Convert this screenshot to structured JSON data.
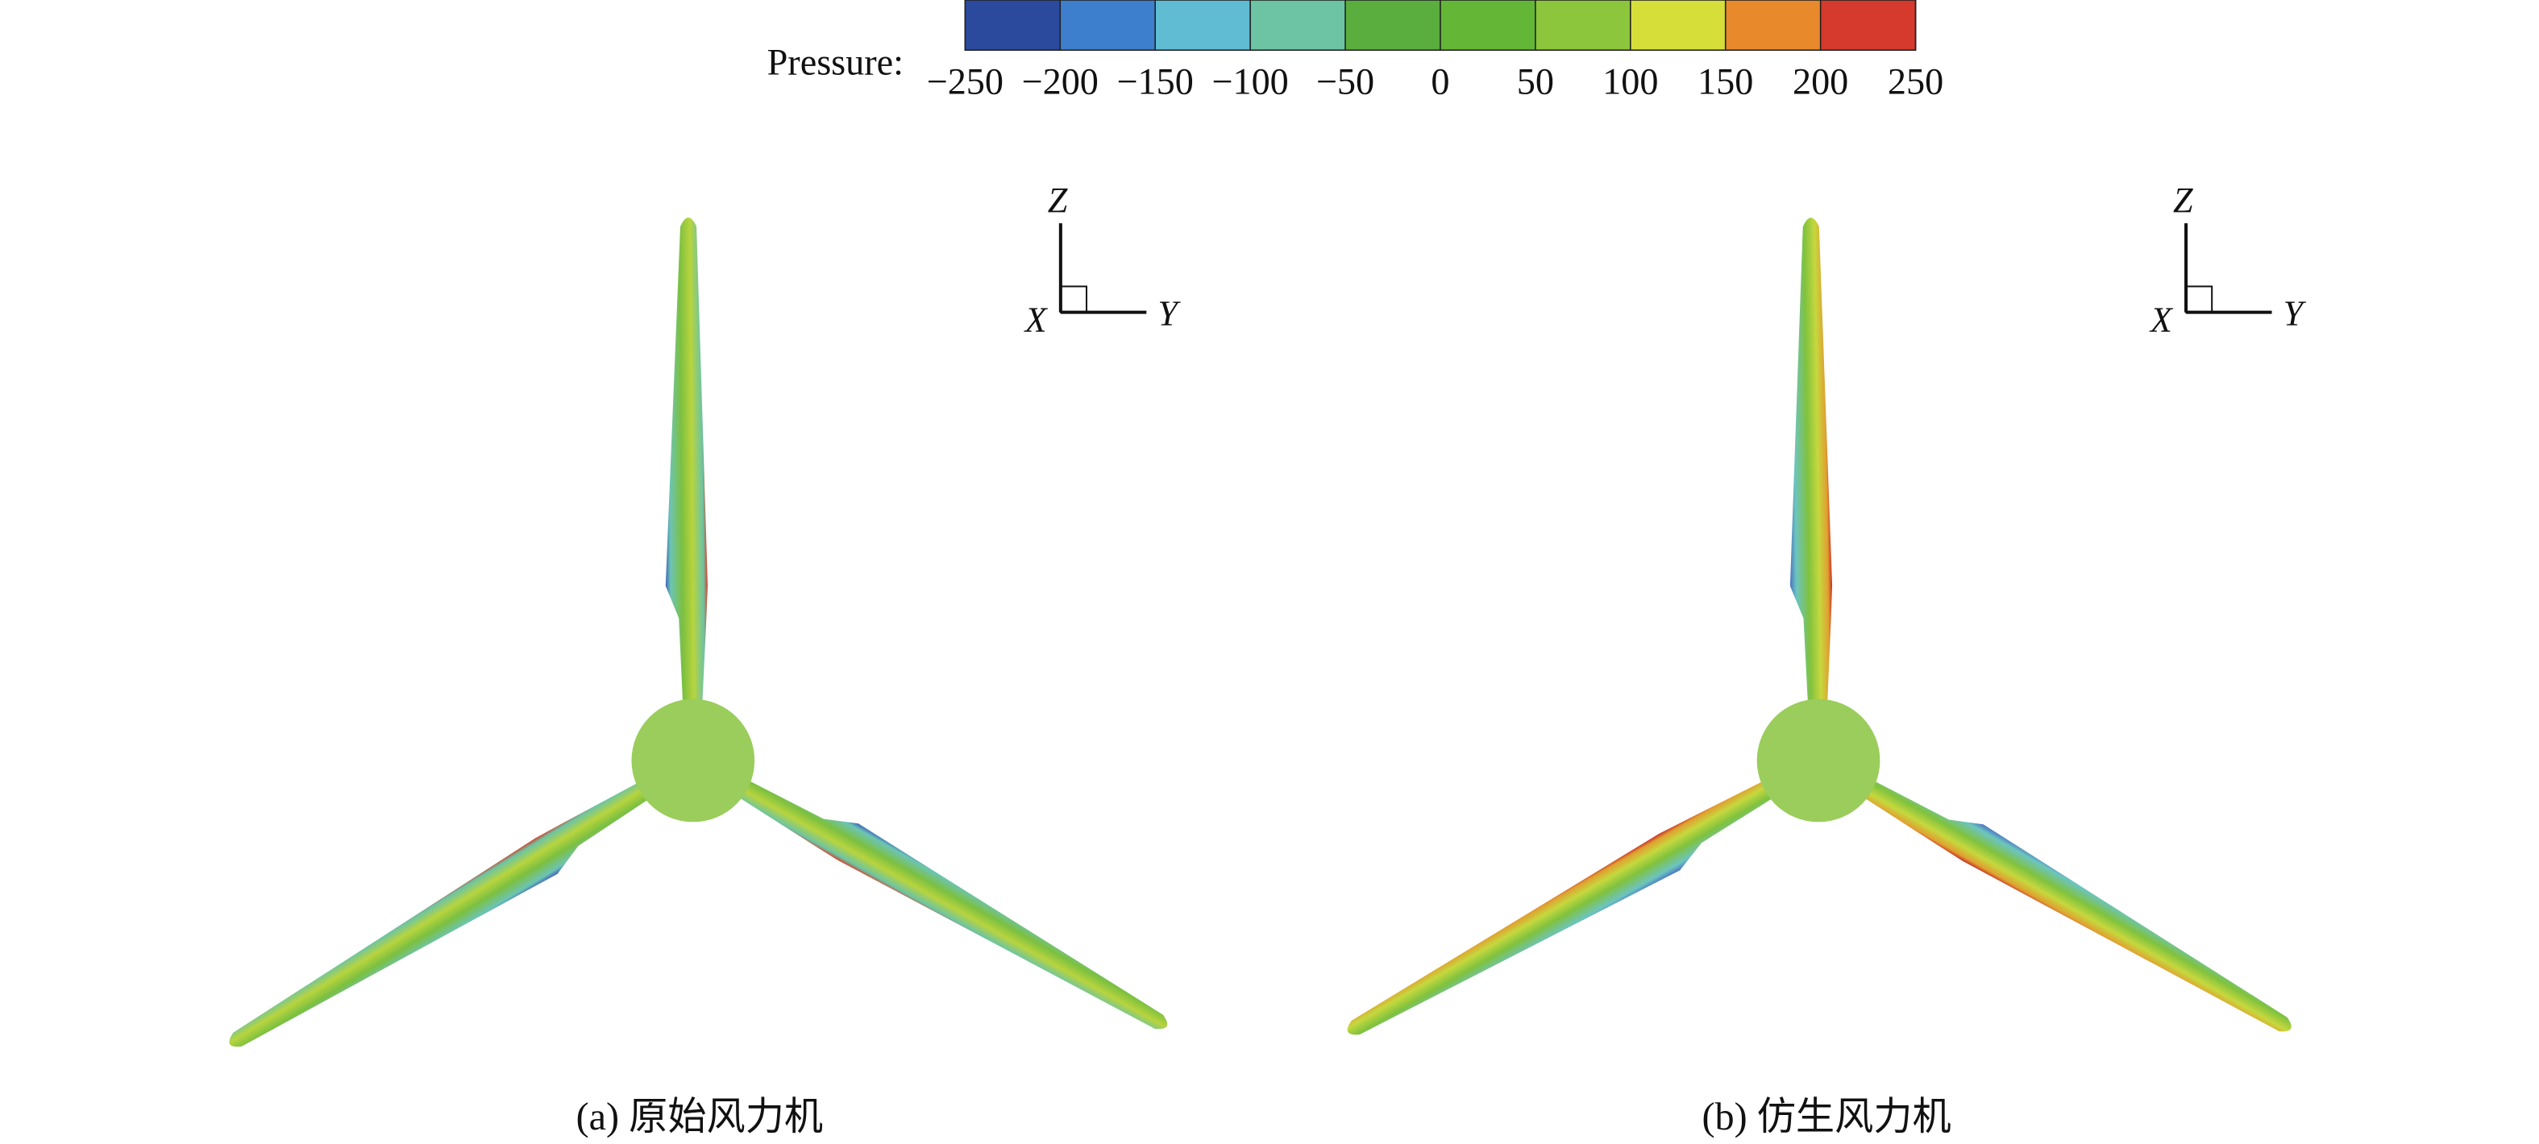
{
  "colorbar": {
    "label": "Pressure:",
    "range": [
      -250,
      250
    ],
    "ticks": [
      {
        "value": -250,
        "label": "−250"
      },
      {
        "value": -200,
        "label": "−200"
      },
      {
        "value": -150,
        "label": "−150"
      },
      {
        "value": -100,
        "label": "−100"
      },
      {
        "value": -50,
        "label": "−50"
      },
      0,
      50,
      100,
      150,
      200,
      250
    ],
    "colors": [
      "#2b4a9e",
      "#3d7fcc",
      "#5fbcd2",
      "#6cc4a4",
      "#5aae3e",
      "#64b636",
      "#8cc63c",
      "#d6df3a",
      "#e8892c",
      "#d53a2c"
    ]
  },
  "panels": [
    {
      "caption": "(a) 原始风力机",
      "axes": {
        "z": "Z",
        "x": "X",
        "y": "Y"
      }
    },
    {
      "caption": "(b) 仿生风力机",
      "axes": {
        "z": "Z",
        "x": "X",
        "y": "Y"
      }
    }
  ]
}
